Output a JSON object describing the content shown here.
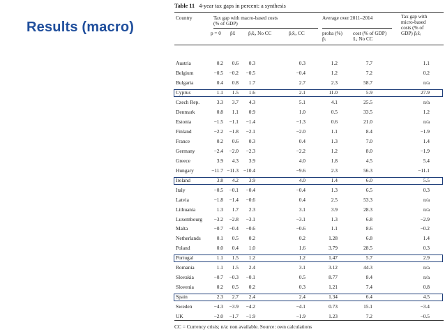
{
  "slide": {
    "title": "Results (macro)"
  },
  "table": {
    "caption_label": "Table 11",
    "caption_text": "4-year tax gaps in percent: a synthesis",
    "headers": {
      "country": "Country",
      "macro_group": "Tax gap with macro-based costs",
      "macro_group_sub": "(% of GDP)",
      "avg_group": "Average over 2011–2014",
      "micro_group_1": "Tax gap with",
      "micro_group_2": "micro-based",
      "micro_group_3": "costs (% of",
      "micro_group_4": "GDP) p̂ᵢx̂ᵢ",
      "col_p0": "p = 0",
      "col_px": "p̂x̂",
      "col_nocc": "p̂ᵢx̂ᵢ, No CC",
      "col_cc": "p̂ᵢx̂ᵢ, CC",
      "col_proba_1": "proba (%)",
      "col_proba_2": "p̂ᵢ",
      "col_cost_1": "cost (% of GDP)",
      "col_cost_2": "x̂ᵢ, No CC"
    },
    "rows": [
      {
        "country": "Austria",
        "p0": "0.2",
        "px": "0.6",
        "nocc": "0.3",
        "cc": "0.3",
        "proba": "1.2",
        "cost": "7.7",
        "micro": "1.1",
        "highlight": false
      },
      {
        "country": "Belgium",
        "p0": "−0.5",
        "px": "−0.2",
        "nocc": "−0.5",
        "cc": "−0.4",
        "proba": "1.2",
        "cost": "7.2",
        "micro": "0.2",
        "highlight": false
      },
      {
        "country": "Bulgaria",
        "p0": "0.4",
        "px": "0.8",
        "nocc": "1.7",
        "cc": "2.7",
        "proba": "2.3",
        "cost": "58.7",
        "micro": "n/a",
        "highlight": false
      },
      {
        "country": "Cyprus",
        "p0": "1.1",
        "px": "1.5",
        "nocc": "1.6",
        "cc": "2.1",
        "proba": "11.0",
        "cost": "5.9",
        "micro": "27.9",
        "highlight": true
      },
      {
        "country": "Czech Rep.",
        "p0": "3.3",
        "px": "3.7",
        "nocc": "4.3",
        "cc": "5.1",
        "proba": "4.1",
        "cost": "25.5",
        "micro": "n/a",
        "highlight": false
      },
      {
        "country": "Denmark",
        "p0": "0.8",
        "px": "1.1",
        "nocc": "0.9",
        "cc": "1.0",
        "proba": "0.5",
        "cost": "33.5",
        "micro": "1.2",
        "highlight": false
      },
      {
        "country": "Estonia",
        "p0": "−1.5",
        "px": "−1.1",
        "nocc": "−1.4",
        "cc": "−1.3",
        "proba": "0.6",
        "cost": "21.0",
        "micro": "n/a",
        "highlight": false
      },
      {
        "country": "Finland",
        "p0": "−2.2",
        "px": "−1.8",
        "nocc": "−2.1",
        "cc": "−2.0",
        "proba": "1.1",
        "cost": "8.4",
        "micro": "−1.9",
        "highlight": false
      },
      {
        "country": "France",
        "p0": "0.2",
        "px": "0.6",
        "nocc": "0.3",
        "cc": "0.4",
        "proba": "1.3",
        "cost": "7.0",
        "micro": "1.4",
        "highlight": false
      },
      {
        "country": "Germany",
        "p0": "−2.4",
        "px": "−2.0",
        "nocc": "−2.3",
        "cc": "−2.2",
        "proba": "1.2",
        "cost": "8.0",
        "micro": "−1.9",
        "highlight": false
      },
      {
        "country": "Greece",
        "p0": "3.9",
        "px": "4.3",
        "nocc": "3.9",
        "cc": "4.0",
        "proba": "1.8",
        "cost": "4.5",
        "micro": "5.4",
        "highlight": false
      },
      {
        "country": "Hungary",
        "p0": "−11.7",
        "px": "−11.3",
        "nocc": "−10.4",
        "cc": "−9.6",
        "proba": "2.3",
        "cost": "56.3",
        "micro": "−11.1",
        "highlight": false
      },
      {
        "country": "Ireland",
        "p0": "3.8",
        "px": "4.2",
        "nocc": "3.9",
        "cc": "4.0",
        "proba": "1.4",
        "cost": "6.0",
        "micro": "5.5",
        "highlight": true
      },
      {
        "country": "Italy",
        "p0": "−0.5",
        "px": "−0.1",
        "nocc": "−0.4",
        "cc": "−0.4",
        "proba": "1.3",
        "cost": "6.5",
        "micro": "0.3",
        "highlight": false
      },
      {
        "country": "Latvia",
        "p0": "−1.8",
        "px": "−1.4",
        "nocc": "−0.6",
        "cc": "0.4",
        "proba": "2.5",
        "cost": "53.3",
        "micro": "n/a",
        "highlight": false
      },
      {
        "country": "Lithuania",
        "p0": "1.3",
        "px": "1.7",
        "nocc": "2.3",
        "cc": "3.1",
        "proba": "3.9",
        "cost": "28.3",
        "micro": "n/a",
        "highlight": false
      },
      {
        "country": "Luxembourg",
        "p0": "−3.2",
        "px": "−2.8",
        "nocc": "−3.1",
        "cc": "−3.1",
        "proba": "1.3",
        "cost": "6.8",
        "micro": "−2.9",
        "highlight": false
      },
      {
        "country": "Malta",
        "p0": "−0.7",
        "px": "−0.4",
        "nocc": "−0.6",
        "cc": "−0.6",
        "proba": "1.1",
        "cost": "8.6",
        "micro": "−0.2",
        "highlight": false
      },
      {
        "country": "Netherlands",
        "p0": "0.1",
        "px": "0.5",
        "nocc": "0.2",
        "cc": "0.2",
        "proba": "1.28",
        "cost": "6.8",
        "micro": "1.4",
        "highlight": false
      },
      {
        "country": "Poland",
        "p0": "0.0",
        "px": "0.4",
        "nocc": "1.0",
        "cc": "1.6",
        "proba": "3.79",
        "cost": "28.5",
        "micro": "0.3",
        "highlight": false
      },
      {
        "country": "Portugal",
        "p0": "1.1",
        "px": "1.5",
        "nocc": "1.2",
        "cc": "1.2",
        "proba": "1.47",
        "cost": "5.7",
        "micro": "2.9",
        "highlight": true
      },
      {
        "country": "Romania",
        "p0": "1.1",
        "px": "1.5",
        "nocc": "2.4",
        "cc": "3.1",
        "proba": "3.12",
        "cost": "44.3",
        "micro": "n/a",
        "highlight": false
      },
      {
        "country": "Slovakia",
        "p0": "−0.7",
        "px": "−0.3",
        "nocc": "−0.1",
        "cc": "0.5",
        "proba": "8.77",
        "cost": "8.4",
        "micro": "n/a",
        "highlight": false
      },
      {
        "country": "Slovenia",
        "p0": "0.2",
        "px": "0.5",
        "nocc": "0.2",
        "cc": "0.3",
        "proba": "1.21",
        "cost": "7.4",
        "micro": "0.8",
        "highlight": false
      },
      {
        "country": "Spain",
        "p0": "2.3",
        "px": "2.7",
        "nocc": "2.4",
        "cc": "2.4",
        "proba": "1.34",
        "cost": "6.4",
        "micro": "4.5",
        "highlight": true
      },
      {
        "country": "Sweden",
        "p0": "−4.3",
        "px": "−3.9",
        "nocc": "−4.2",
        "cc": "−4.1",
        "proba": "0.73",
        "cost": "15.1",
        "micro": "−3.4",
        "highlight": false
      },
      {
        "country": "UK",
        "p0": "−2.0",
        "px": "−1.7",
        "nocc": "−1.9",
        "cc": "−1.9",
        "proba": "1.23",
        "cost": "7.2",
        "micro": "−0.5",
        "highlight": false
      }
    ],
    "footnote": "CC = Currency crisis; n/a: non available. Source: own calculations"
  },
  "colors": {
    "title": "#1f4e9c",
    "highlight_border": "#1f3f7a"
  }
}
